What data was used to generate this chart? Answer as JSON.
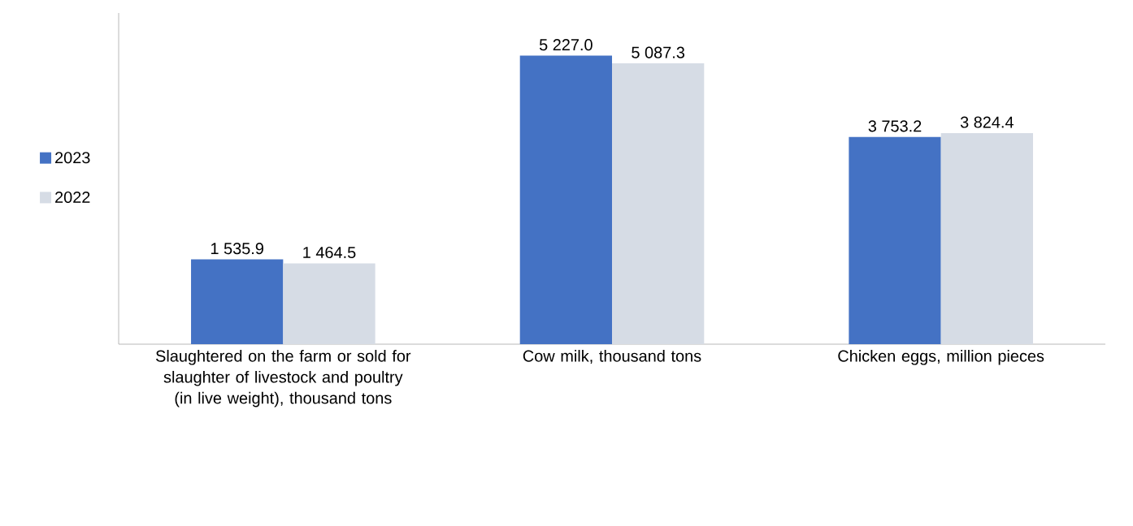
{
  "chart_data": {
    "type": "bar",
    "categories": [
      "Slaughtered on the farm or sold for slaughter of livestock and poultry (in live weight), thousand tons",
      "Cow milk, thousand tons",
      "Chicken eggs, million pieces"
    ],
    "series": [
      {
        "name": "2023",
        "color": "#4472c4",
        "values": [
          1535.9,
          5227.0,
          3753.2
        ],
        "value_labels": [
          "1 535.9",
          "5 227.0",
          "3 753.2"
        ]
      },
      {
        "name": "2022",
        "color": "#d6dce5",
        "values": [
          1464.5,
          5087.3,
          3824.4
        ],
        "value_labels": [
          "1 464.5",
          "5 087.3",
          "3 824.4"
        ]
      }
    ],
    "ylim": [
      0,
      6000
    ],
    "tick_labels": "x",
    "legend": "left"
  }
}
